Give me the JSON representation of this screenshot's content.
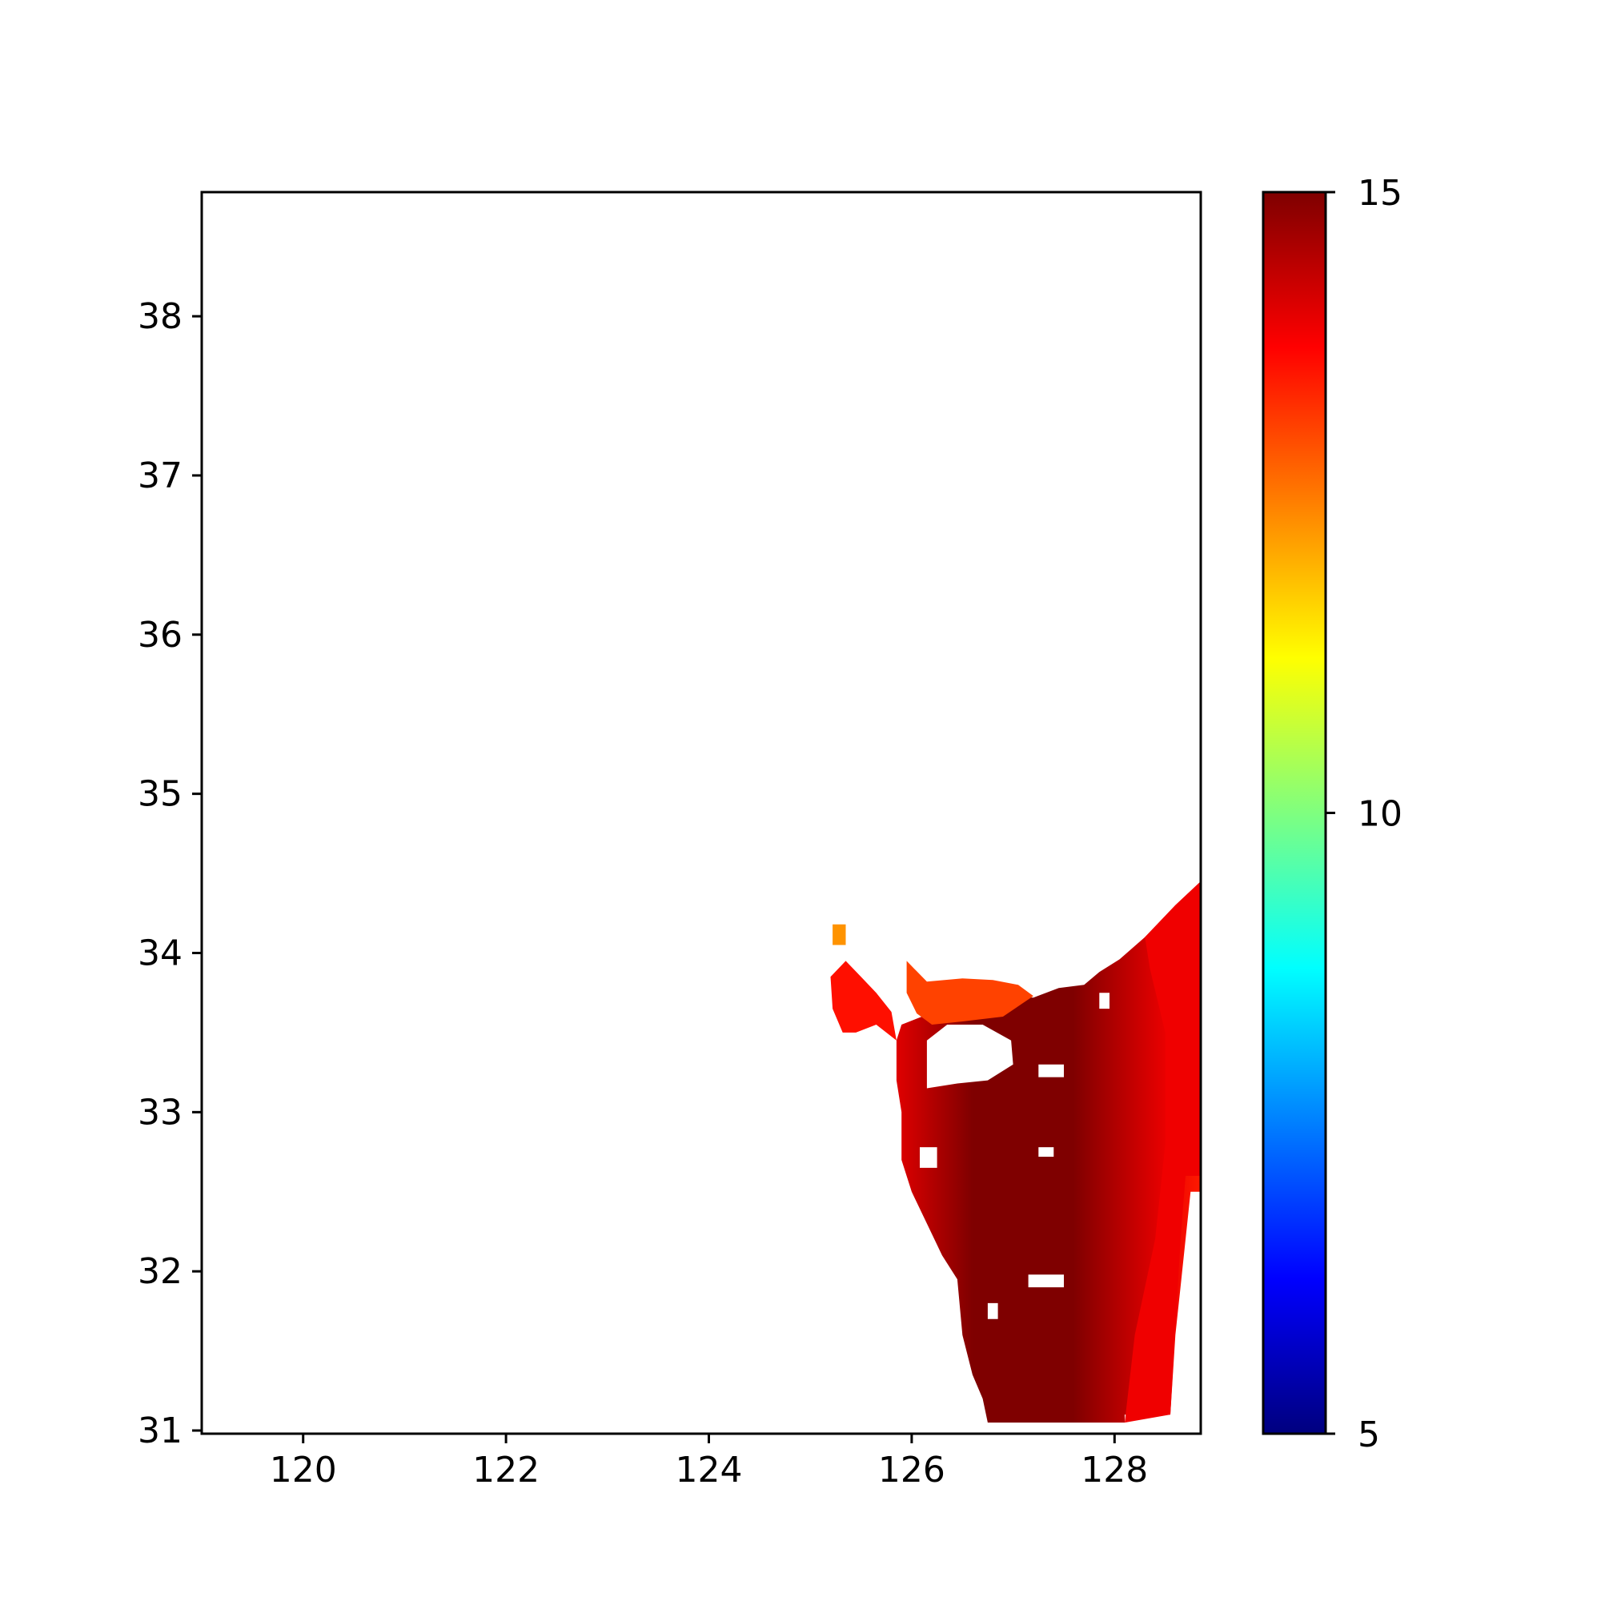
{
  "chart_data": {
    "type": "heatmap",
    "title": "",
    "xlabel": "",
    "ylabel": "",
    "xlim": [
      119.0,
      128.85
    ],
    "ylim": [
      30.98,
      38.78
    ],
    "x_ticks": [
      {
        "value": 120,
        "label": "120"
      },
      {
        "value": 122,
        "label": "122"
      },
      {
        "value": 124,
        "label": "124"
      },
      {
        "value": 126,
        "label": "126"
      },
      {
        "value": 128,
        "label": "128"
      }
    ],
    "y_ticks": [
      {
        "value": 31,
        "label": "31"
      },
      {
        "value": 32,
        "label": "32"
      },
      {
        "value": 33,
        "label": "33"
      },
      {
        "value": 34,
        "label": "34"
      },
      {
        "value": 35,
        "label": "35"
      },
      {
        "value": 36,
        "label": "36"
      },
      {
        "value": 37,
        "label": "37"
      },
      {
        "value": 38,
        "label": "38"
      }
    ],
    "colorbar": {
      "colormap": "jet",
      "vmin": 5,
      "vmax": 15,
      "ticks": [
        {
          "value": 15,
          "label": "15"
        },
        {
          "value": 10,
          "label": "10"
        },
        {
          "value": 5,
          "label": "5"
        }
      ],
      "stops": [
        "#00007f",
        "#0000ff",
        "#007fff",
        "#00ffff",
        "#7fff7f",
        "#ffff00",
        "#ff7f00",
        "#ff0000",
        "#7f0000"
      ]
    },
    "regions": [
      {
        "name": "main-field",
        "value": 14.3,
        "gradient_east_west": true,
        "polygon": [
          [
            125.9,
            33.55
          ],
          [
            126.1,
            33.6
          ],
          [
            126.3,
            33.68
          ],
          [
            126.6,
            33.72
          ],
          [
            126.9,
            33.73
          ],
          [
            127.2,
            33.72
          ],
          [
            127.45,
            33.78
          ],
          [
            127.7,
            33.8
          ],
          [
            127.85,
            33.88
          ],
          [
            128.05,
            33.96
          ],
          [
            128.3,
            34.1
          ],
          [
            128.6,
            34.3
          ],
          [
            128.85,
            34.45
          ],
          [
            128.85,
            32.5
          ],
          [
            128.75,
            32.5
          ],
          [
            128.7,
            32.2
          ],
          [
            128.65,
            31.9
          ],
          [
            128.6,
            31.6
          ],
          [
            128.55,
            31.1
          ],
          [
            128.1,
            31.1
          ],
          [
            128.1,
            31.05
          ],
          [
            127.5,
            31.05
          ],
          [
            126.75,
            31.05
          ],
          [
            126.7,
            31.2
          ],
          [
            126.6,
            31.35
          ],
          [
            126.5,
            31.6
          ],
          [
            126.45,
            31.95
          ],
          [
            126.3,
            32.1
          ],
          [
            126.15,
            32.3
          ],
          [
            126.0,
            32.5
          ],
          [
            125.9,
            32.7
          ],
          [
            125.9,
            33.0
          ],
          [
            125.85,
            33.2
          ],
          [
            125.85,
            33.45
          ]
        ]
      },
      {
        "name": "west-arm",
        "value": 13.6,
        "polygon": [
          [
            125.2,
            33.85
          ],
          [
            125.35,
            33.95
          ],
          [
            125.5,
            33.85
          ],
          [
            125.65,
            33.75
          ],
          [
            125.8,
            33.63
          ],
          [
            125.85,
            33.45
          ],
          [
            125.65,
            33.55
          ],
          [
            125.45,
            33.5
          ],
          [
            125.32,
            33.5
          ],
          [
            125.22,
            33.65
          ]
        ]
      },
      {
        "name": "north-islet",
        "value": 12.3,
        "polygon": [
          [
            125.22,
            34.18
          ],
          [
            125.35,
            34.18
          ],
          [
            125.35,
            34.05
          ],
          [
            125.22,
            34.05
          ]
        ]
      },
      {
        "name": "north-arm",
        "value": 13.1,
        "polygon": [
          [
            125.95,
            33.95
          ],
          [
            126.15,
            33.82
          ],
          [
            126.5,
            33.84
          ],
          [
            126.8,
            33.83
          ],
          [
            127.05,
            33.8
          ],
          [
            127.2,
            33.73
          ],
          [
            126.9,
            33.6
          ],
          [
            126.5,
            33.57
          ],
          [
            126.2,
            33.55
          ],
          [
            126.05,
            33.62
          ],
          [
            125.95,
            33.75
          ]
        ]
      },
      {
        "name": "east-strip",
        "value": 13.9,
        "polygon": [
          [
            128.3,
            34.1
          ],
          [
            128.6,
            34.3
          ],
          [
            128.85,
            34.45
          ],
          [
            128.85,
            32.6
          ],
          [
            128.7,
            32.6
          ],
          [
            128.65,
            32.2
          ],
          [
            128.55,
            31.1
          ],
          [
            128.1,
            31.05
          ],
          [
            128.2,
            31.6
          ],
          [
            128.4,
            32.2
          ],
          [
            128.5,
            32.8
          ],
          [
            128.5,
            33.5
          ],
          [
            128.35,
            33.9
          ]
        ]
      }
    ],
    "gaps": [
      {
        "name": "hole-large",
        "polygon": [
          [
            126.15,
            33.15
          ],
          [
            126.15,
            33.45
          ],
          [
            126.35,
            33.55
          ],
          [
            126.7,
            33.55
          ],
          [
            126.98,
            33.45
          ],
          [
            127.0,
            33.3
          ],
          [
            126.75,
            33.2
          ],
          [
            126.45,
            33.18
          ]
        ]
      },
      {
        "name": "hole-small-1",
        "polygon": [
          [
            126.08,
            32.65
          ],
          [
            126.08,
            32.78
          ],
          [
            126.25,
            32.78
          ],
          [
            126.25,
            32.65
          ]
        ]
      },
      {
        "name": "hole-small-2",
        "polygon": [
          [
            127.25,
            32.72
          ],
          [
            127.25,
            32.78
          ],
          [
            127.4,
            32.78
          ],
          [
            127.4,
            32.72
          ]
        ]
      },
      {
        "name": "hole-small-3",
        "polygon": [
          [
            126.75,
            31.7
          ],
          [
            126.75,
            31.8
          ],
          [
            126.85,
            31.8
          ],
          [
            126.85,
            31.7
          ]
        ]
      },
      {
        "name": "hole-small-4",
        "polygon": [
          [
            127.15,
            31.9
          ],
          [
            127.15,
            31.98
          ],
          [
            127.5,
            31.98
          ],
          [
            127.5,
            31.9
          ]
        ]
      },
      {
        "name": "hole-small-5",
        "polygon": [
          [
            127.85,
            33.65
          ],
          [
            127.85,
            33.75
          ],
          [
            127.95,
            33.75
          ],
          [
            127.95,
            33.65
          ]
        ]
      },
      {
        "name": "hole-small-6",
        "polygon": [
          [
            127.25,
            33.22
          ],
          [
            127.25,
            33.3
          ],
          [
            127.5,
            33.3
          ],
          [
            127.5,
            33.22
          ]
        ]
      }
    ]
  }
}
